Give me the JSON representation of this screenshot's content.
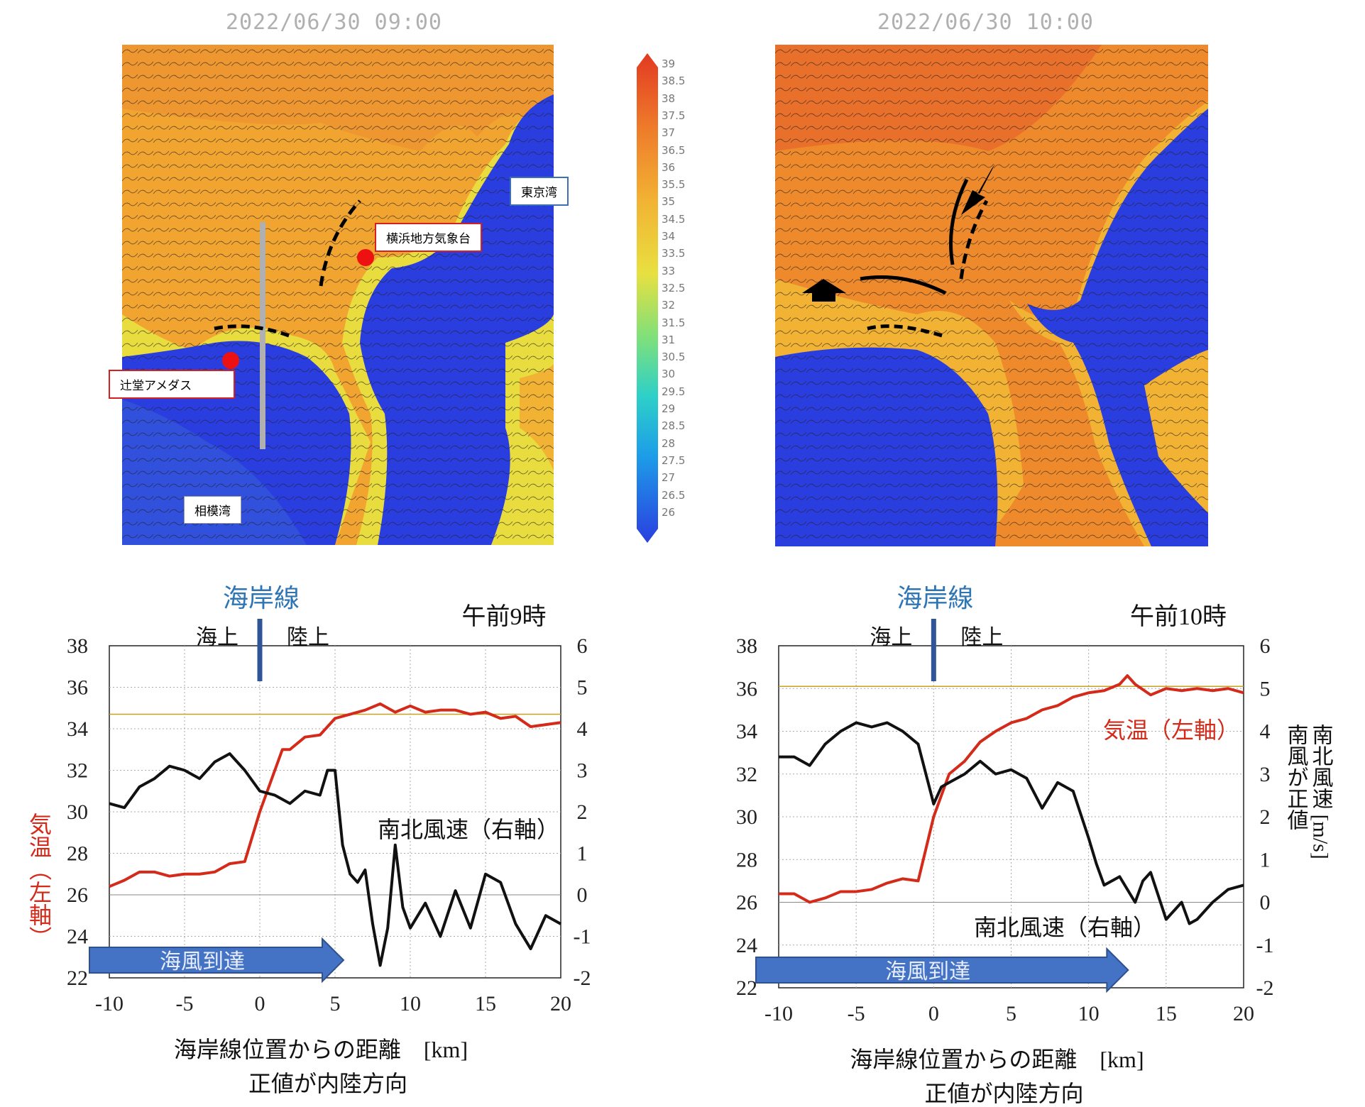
{
  "maps": {
    "left": {
      "timestamp": "2022/06/30 09:00",
      "labels": {
        "tokyo_bay": "東京湾",
        "yokohama": "横浜地方気象台",
        "tsujido": "辻堂アメダス",
        "sagami_bay": "相模湾"
      }
    },
    "right": {
      "timestamp": "2022/06/30 10:00"
    },
    "colorbar": {
      "ticks": [
        "39",
        "38.5",
        "38",
        "37.5",
        "37",
        "36.5",
        "36",
        "35.5",
        "35",
        "34.5",
        "34",
        "33.5",
        "33",
        "32.5",
        "32",
        "31.5",
        "31",
        "30.5",
        "30",
        "29.5",
        "29",
        "28.5",
        "28",
        "27.5",
        "27",
        "26.5",
        "26"
      ],
      "colors": [
        "#2a3ee0",
        "#1d9ee8",
        "#2ed0c8",
        "#7fe07a",
        "#e8e040",
        "#f2b233",
        "#ee7a2a",
        "#e23a22"
      ]
    }
  },
  "chart_data": [
    {
      "type": "line",
      "title": "午前9時",
      "coastline_label": "海岸線",
      "sea_label": "海上",
      "land_label": "陸上",
      "xlabel": "海岸線位置からの距離　[km]",
      "xlabel2": "正値が内陸方向",
      "ylabel_left": "気温（左軸）",
      "y_left_lim": [
        22,
        38
      ],
      "y_right_lim": [
        -2,
        6
      ],
      "x_lim": [
        -10,
        20
      ],
      "x_ticks": [
        "-10",
        "-5",
        "0",
        "5",
        "10",
        "15",
        "20"
      ],
      "y_left_ticks": [
        "22",
        "24",
        "26",
        "28",
        "30",
        "32",
        "34",
        "36",
        "38"
      ],
      "y_right_ticks": [
        "-2",
        "-1",
        "0",
        "1",
        "2",
        "3",
        "4",
        "5",
        "6"
      ],
      "arrow_label": "海風到達",
      "arrow_x_end": 5,
      "reference_line_left": 34.7,
      "series": [
        {
          "name": "気温（左軸）",
          "axis": "left",
          "color": "#d42a1a",
          "x": [
            -10,
            -9,
            -8,
            -7,
            -6,
            -5,
            -4,
            -3,
            -2,
            -1,
            0,
            0.5,
            1,
            1.5,
            2,
            3,
            4,
            5,
            6,
            7,
            8,
            9,
            10,
            11,
            12,
            13,
            14,
            15,
            16,
            17,
            18,
            19,
            20
          ],
          "y": [
            26.4,
            26.7,
            27.1,
            27.1,
            26.9,
            27.0,
            27.0,
            27.1,
            27.5,
            27.6,
            30.0,
            31.0,
            32.0,
            33.0,
            33.0,
            33.6,
            33.7,
            34.5,
            34.7,
            34.9,
            35.2,
            34.8,
            35.1,
            34.8,
            34.9,
            34.9,
            34.7,
            34.8,
            34.5,
            34.6,
            34.1,
            34.2,
            34.3
          ]
        },
        {
          "name": "南北風速（右軸）",
          "axis": "right",
          "color": "#111111",
          "x": [
            -10,
            -9,
            -8,
            -7,
            -6,
            -5,
            -4,
            -3,
            -2,
            -1,
            0,
            1,
            2,
            3,
            4,
            4.5,
            5,
            5.5,
            6,
            6.5,
            7,
            7.5,
            8,
            8.5,
            9,
            9.5,
            10,
            11,
            12,
            13,
            14,
            15,
            16,
            17,
            18,
            19,
            20
          ],
          "y": [
            2.2,
            2.1,
            2.6,
            2.8,
            3.1,
            3.0,
            2.8,
            3.2,
            3.4,
            3.0,
            2.5,
            2.4,
            2.2,
            2.5,
            2.4,
            3.0,
            3.0,
            1.2,
            0.5,
            0.3,
            0.6,
            -0.7,
            -1.7,
            -0.8,
            1.2,
            -0.3,
            -0.8,
            -0.2,
            -1.0,
            0.1,
            -0.8,
            0.5,
            0.3,
            -0.7,
            -1.3,
            -0.5,
            -0.7
          ]
        }
      ],
      "wind_label": "南北風速（右軸）"
    },
    {
      "type": "line",
      "title": "午前10時",
      "coastline_label": "海岸線",
      "sea_label": "海上",
      "land_label": "陸上",
      "xlabel": "海岸線位置からの距離　[km]",
      "xlabel2": "正値が内陸方向",
      "ylabel_right_1": "南北風速 [m/s]",
      "ylabel_right_2": "南風が正値",
      "temp_label": "気温（左軸）",
      "y_left_lim": [
        22,
        38
      ],
      "y_right_lim": [
        -2,
        6
      ],
      "x_lim": [
        -10,
        20
      ],
      "x_ticks": [
        "-10",
        "-5",
        "0",
        "5",
        "10",
        "15",
        "20"
      ],
      "y_left_ticks": [
        "22",
        "24",
        "26",
        "28",
        "30",
        "32",
        "34",
        "36",
        "38"
      ],
      "y_right_ticks": [
        "-2",
        "-1",
        "0",
        "1",
        "2",
        "3",
        "4",
        "5",
        "6"
      ],
      "arrow_label": "海風到達",
      "arrow_x_end": 12,
      "reference_line_left": 36.1,
      "series": [
        {
          "name": "気温（左軸）",
          "axis": "left",
          "color": "#d42a1a",
          "x": [
            -10,
            -9,
            -8,
            -7,
            -6,
            -5,
            -4,
            -3,
            -2,
            -1,
            0,
            0.5,
            1,
            2,
            3,
            4,
            5,
            6,
            7,
            8,
            9,
            10,
            11,
            12,
            12.5,
            13,
            14,
            15,
            16,
            17,
            18,
            19,
            20
          ],
          "y": [
            26.4,
            26.4,
            26.0,
            26.2,
            26.5,
            26.5,
            26.6,
            26.9,
            27.1,
            27.0,
            30.0,
            31.0,
            32.0,
            32.6,
            33.5,
            34.0,
            34.4,
            34.6,
            35.0,
            35.2,
            35.6,
            35.8,
            35.9,
            36.2,
            36.6,
            36.2,
            35.7,
            36.0,
            35.9,
            36.0,
            35.9,
            36.0,
            35.8
          ]
        },
        {
          "name": "南北風速（右軸）",
          "axis": "right",
          "color": "#111111",
          "x": [
            -10,
            -9,
            -8,
            -7,
            -6,
            -5,
            -4,
            -3,
            -2,
            -1,
            0,
            0.5,
            1,
            2,
            3,
            4,
            5,
            6,
            7,
            8,
            9,
            10,
            10.5,
            11,
            12,
            13,
            13.5,
            14,
            15,
            16,
            16.5,
            17,
            18,
            19,
            20
          ],
          "y": [
            3.4,
            3.4,
            3.2,
            3.7,
            4.0,
            4.2,
            4.1,
            4.2,
            4.0,
            3.7,
            2.3,
            2.7,
            2.8,
            3.0,
            3.3,
            3.0,
            3.1,
            2.9,
            2.2,
            2.8,
            2.6,
            1.5,
            0.9,
            0.4,
            0.6,
            0.0,
            0.5,
            0.7,
            -0.4,
            0.0,
            -0.5,
            -0.4,
            0.0,
            0.3,
            0.4
          ]
        }
      ],
      "wind_label": "南北風速（右軸）"
    }
  ]
}
